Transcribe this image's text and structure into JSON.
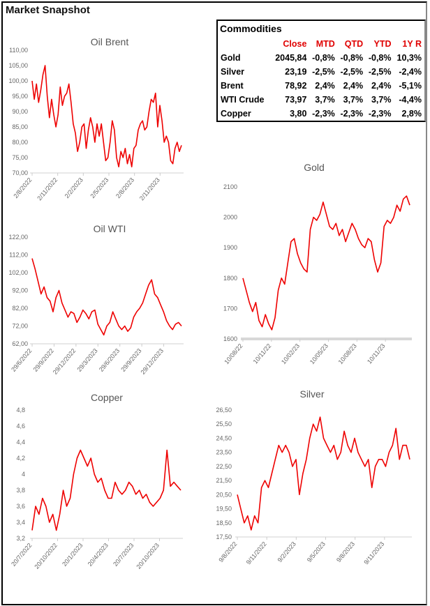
{
  "title": "Market Snapshot",
  "table": {
    "title": "Commodities",
    "headers": [
      "",
      "Close",
      "MTD",
      "QTD",
      "YTD",
      "1Y R"
    ],
    "rows": [
      [
        "Gold",
        "2045,84",
        "-0,8%",
        "-0,8%",
        "-0,8%",
        "10,3%"
      ],
      [
        "Silver",
        "23,19",
        "-2,5%",
        "-2,5%",
        "-2,5%",
        "-2,4%"
      ],
      [
        "Brent",
        "78,92",
        "2,4%",
        "2,4%",
        "2,4%",
        "-5,1%"
      ],
      [
        "WTI Crude",
        "73,97",
        "3,7%",
        "3,7%",
        "3,7%",
        "-4,4%"
      ],
      [
        "Copper",
        "3,80",
        "-2,3%",
        "-2,3%",
        "-2,3%",
        "2,8%"
      ]
    ]
  },
  "colors": {
    "line": "#ee0000",
    "table_header": "#e00000"
  },
  "chart_data": [
    {
      "id": "brent",
      "type": "line",
      "title": "Oil Brent",
      "ylim": [
        70,
        110
      ],
      "yticks": [
        "70,00",
        "75,00",
        "80,00",
        "85,00",
        "90,00",
        "95,00",
        "100,00",
        "105,00",
        "110,00"
      ],
      "xticks": [
        "2/8/2022",
        "2/11/2022",
        "2/2/2023",
        "2/5/2023",
        "2/8/2023",
        "2/11/2023"
      ],
      "values": [
        100,
        94,
        99,
        93,
        97,
        102,
        105,
        95,
        88,
        94,
        89,
        85,
        89,
        98,
        92,
        95,
        96,
        99,
        93,
        86,
        83,
        77,
        80,
        85,
        86,
        78,
        84,
        88,
        85,
        80,
        86,
        82,
        86,
        80,
        74,
        75,
        80,
        87,
        84,
        75,
        72,
        77,
        75,
        78,
        73,
        76,
        72,
        78,
        79,
        84,
        86,
        87,
        84,
        85,
        90,
        94,
        93,
        96,
        85,
        92,
        87,
        80,
        82,
        80,
        74,
        73,
        78,
        80,
        77,
        79
      ]
    },
    {
      "id": "wti",
      "type": "line",
      "title": "Oil WTI",
      "ylim": [
        62,
        122
      ],
      "yticks": [
        "62,00",
        "72,00",
        "82,00",
        "92,00",
        "102,00",
        "112,00",
        "122,00"
      ],
      "xticks": [
        "29/6/2022",
        "29/9/2022",
        "29/12/2022",
        "29/3/2023",
        "29/6/2023",
        "29/9/2023",
        "29/12/2023"
      ],
      "values": [
        110,
        104,
        97,
        90,
        94,
        88,
        86,
        80,
        88,
        92,
        85,
        81,
        77,
        80,
        79,
        74,
        77,
        81,
        79,
        76,
        80,
        81,
        73,
        70,
        67,
        72,
        74,
        80,
        76,
        72,
        70,
        72,
        69,
        71,
        77,
        80,
        82,
        85,
        90,
        95,
        98,
        90,
        88,
        84,
        80,
        75,
        72,
        70,
        73,
        74,
        72
      ]
    },
    {
      "id": "gold",
      "type": "line",
      "title": "Gold",
      "ylim": [
        1600,
        2100
      ],
      "yticks": [
        "1600",
        "1700",
        "1800",
        "1900",
        "2000",
        "2100"
      ],
      "xticks": [
        "10/08/22",
        "10/11/22",
        "10/02/23",
        "10/05/23",
        "10/08/23",
        "10/11/23"
      ],
      "values": [
        1800,
        1760,
        1720,
        1690,
        1720,
        1660,
        1640,
        1680,
        1650,
        1630,
        1670,
        1760,
        1800,
        1780,
        1850,
        1920,
        1930,
        1880,
        1850,
        1830,
        1820,
        1960,
        2000,
        1990,
        2010,
        2050,
        2010,
        1970,
        1960,
        1980,
        1940,
        1960,
        1920,
        1950,
        1980,
        1960,
        1930,
        1910,
        1900,
        1930,
        1920,
        1860,
        1820,
        1850,
        1970,
        1990,
        1980,
        2000,
        2040,
        2020,
        2060,
        2070,
        2040
      ]
    },
    {
      "id": "copper",
      "type": "line",
      "title": "Copper",
      "ylim": [
        3.2,
        4.8
      ],
      "yticks": [
        "3,2",
        "3,4",
        "3,6",
        "3,8",
        "4",
        "4,2",
        "4,4",
        "4,6",
        "4,8"
      ],
      "xticks": [
        "20/7/2022",
        "20/10/2022",
        "20/1/2023",
        "20/4/2023",
        "20/7/2023",
        "20/10/2023"
      ],
      "values": [
        3.3,
        3.6,
        3.5,
        3.7,
        3.6,
        3.4,
        3.5,
        3.3,
        3.5,
        3.8,
        3.6,
        3.7,
        4.0,
        4.2,
        4.3,
        4.2,
        4.1,
        4.2,
        4.0,
        3.9,
        3.95,
        3.8,
        3.7,
        3.7,
        3.9,
        3.8,
        3.75,
        3.8,
        3.9,
        3.85,
        3.75,
        3.8,
        3.7,
        3.75,
        3.65,
        3.6,
        3.65,
        3.7,
        3.8,
        4.3,
        3.85,
        3.9,
        3.85,
        3.8
      ]
    },
    {
      "id": "silver",
      "type": "line",
      "title": "Silver",
      "ylim": [
        17.5,
        26.5
      ],
      "yticks": [
        "17,50",
        "18,50",
        "19,50",
        "20,50",
        "21,50",
        "22,50",
        "23,50",
        "24,50",
        "25,50",
        "26,50"
      ],
      "xticks": [
        "9/8/2022",
        "9/11/2022",
        "9/2/2023",
        "9/5/2023",
        "9/8/2023",
        "9/11/2023"
      ],
      "values": [
        20.5,
        19.5,
        18.5,
        19,
        18,
        19,
        18.5,
        21,
        21.5,
        21,
        22,
        23,
        24,
        23.5,
        24,
        23.5,
        22.5,
        23,
        20.5,
        22,
        23,
        24.5,
        25.5,
        25,
        26,
        24.5,
        24,
        23.5,
        24,
        23,
        23.5,
        25,
        24,
        23.5,
        24.5,
        23.5,
        23,
        22.5,
        23,
        21,
        22.5,
        23,
        23,
        22.5,
        23.5,
        24,
        25.2,
        23,
        24,
        24,
        23
      ]
    }
  ]
}
